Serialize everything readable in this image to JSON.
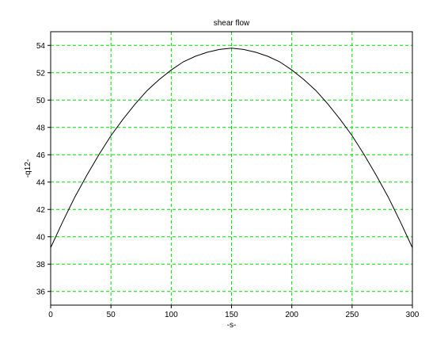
{
  "chart_data": {
    "type": "line",
    "title": "shear flow",
    "xlabel": "-s-",
    "ylabel": "-q12-",
    "xlim": [
      0,
      300
    ],
    "ylim": [
      35,
      55
    ],
    "xticks": [
      0,
      50,
      100,
      150,
      200,
      250,
      300
    ],
    "yticks": [
      36,
      38,
      40,
      42,
      44,
      46,
      48,
      50,
      52,
      54
    ],
    "grid": true,
    "grid_color": "#00dd00",
    "line_color": "#000000",
    "series": [
      {
        "x": [
          0,
          10,
          20,
          30,
          40,
          50,
          60,
          70,
          80,
          90,
          100,
          110,
          120,
          130,
          140,
          150,
          160,
          170,
          180,
          190,
          200,
          210,
          220,
          230,
          240,
          250,
          260,
          270,
          280,
          290,
          300
        ],
        "values": [
          39.2,
          41.1,
          42.9,
          44.5,
          46.0,
          47.4,
          48.6,
          49.7,
          50.7,
          51.5,
          52.2,
          52.8,
          53.2,
          53.5,
          53.7,
          53.8,
          53.7,
          53.5,
          53.2,
          52.8,
          52.2,
          51.5,
          50.7,
          49.7,
          48.6,
          47.4,
          46.0,
          44.5,
          42.9,
          41.1,
          39.2
        ]
      }
    ]
  }
}
